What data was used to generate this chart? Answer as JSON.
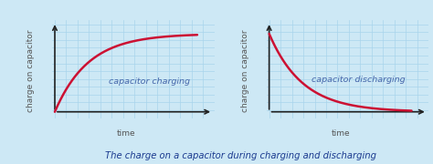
{
  "background_color": "#cde8f5",
  "grid_color": "#a8d4ec",
  "axis_color": "#222222",
  "curve_color": "#cc1133",
  "curve_lw": 1.8,
  "label_charging": "capacitor charging",
  "label_discharging": "capacitor discharging",
  "ylabel": "charge on capacitor",
  "xlabel": "time",
  "title": "The charge on a capacitor during charging and discharging",
  "title_color": "#1a3a8f",
  "title_fontsize": 7.2,
  "axis_label_fontsize": 6.5,
  "curve_label_fontsize": 6.8,
  "curve_label_color": "#4466aa",
  "ylabel_color": "#555555",
  "xlabel_color": "#555555"
}
